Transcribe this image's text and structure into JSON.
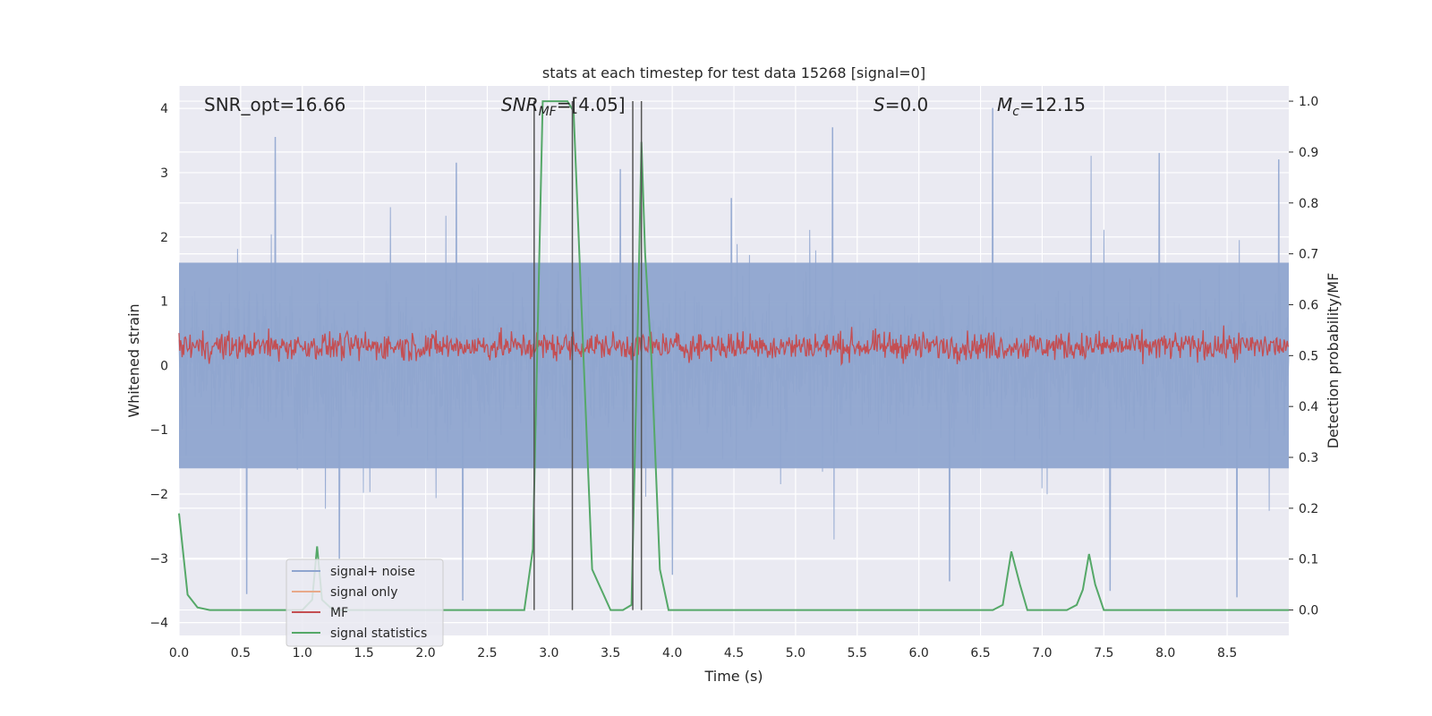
{
  "chart_data": {
    "type": "line",
    "title": "stats at each timestep for test data 15268 [signal=0]",
    "xlabel": "Time (s)",
    "ylabel": "Whitened strain",
    "ylabel_right": "Detection probability/MF",
    "xlim": [
      0.0,
      9.0
    ],
    "ylim": [
      -4.2,
      4.35
    ],
    "ylim_right": [
      -0.05,
      1.03
    ],
    "x_ticks": [
      "0.0",
      "0.5",
      "1.0",
      "1.5",
      "2.0",
      "2.5",
      "3.0",
      "3.5",
      "4.0",
      "4.5",
      "5.0",
      "5.5",
      "6.0",
      "6.5",
      "7.0",
      "7.5",
      "8.0",
      "8.5"
    ],
    "y_ticks": [
      "−4",
      "−3",
      "−2",
      "−1",
      "0",
      "1",
      "2",
      "3",
      "4"
    ],
    "y_ticks_right": [
      "0.0",
      "0.1",
      "0.2",
      "0.3",
      "0.4",
      "0.5",
      "0.6",
      "0.7",
      "0.8",
      "0.9",
      "1.0"
    ],
    "annotations": {
      "snr_opt": "SNR_opt=16.66",
      "snr_mf_base": "SNR",
      "snr_mf_sub": "MF",
      "snr_mf_value": "=[4.05]",
      "s_sym": "S",
      "s_value": "=0.0",
      "mc_base": "M",
      "mc_sub": "c",
      "mc_value": "=12.15"
    },
    "legend": [
      "signal+ noise",
      "signal only",
      "MF",
      "signal statistics"
    ],
    "colors": {
      "signal_noise": "#8fa5cf",
      "signal_only": "#e8a98a",
      "mf": "#c44e52",
      "signal_statistics": "#55a868",
      "vlines": "#555555",
      "background": "#eaeaf2"
    },
    "series": [
      {
        "name": "signal+ noise",
        "description_values": "noise band mostly within ±1.6 whitened strain, spikes up to about ±4",
        "envelope_upper": 1.6,
        "envelope_lower": -1.6,
        "peak_values": [
          [
            0.78,
            3.55
          ],
          [
            2.25,
            3.15
          ],
          [
            3.58,
            3.05
          ],
          [
            4.48,
            2.6
          ],
          [
            5.3,
            3.7
          ],
          [
            6.6,
            4.0
          ],
          [
            7.95,
            3.3
          ],
          [
            8.92,
            3.2
          ],
          [
            0.55,
            -3.55
          ],
          [
            2.3,
            -3.65
          ],
          [
            4.0,
            -3.25
          ],
          [
            6.25,
            -3.35
          ],
          [
            8.58,
            -3.6
          ],
          [
            1.3,
            -3.0
          ],
          [
            7.55,
            -3.5
          ]
        ]
      },
      {
        "name": "MF",
        "description_values": "matched-filter output oscillating between about 0.05 and 0.8",
        "baseline": 0.3,
        "range": [
          0.02,
          0.82
        ]
      },
      {
        "name": "signal statistics",
        "axis": "right",
        "x": [
          0.0,
          0.07,
          0.15,
          0.25,
          0.4,
          1.0,
          1.08,
          1.12,
          1.16,
          1.25,
          1.5,
          2.0,
          2.5,
          2.8,
          2.87,
          2.95,
          3.0,
          3.1,
          3.15,
          3.2,
          3.28,
          3.35,
          3.5,
          3.6,
          3.67,
          3.72,
          3.75,
          3.78,
          3.83,
          3.9,
          3.97,
          4.1,
          5.0,
          6.0,
          6.6,
          6.68,
          6.75,
          6.82,
          6.88,
          6.95,
          7.2,
          7.28,
          7.33,
          7.38,
          7.43,
          7.5,
          7.6,
          8.0,
          9.0
        ],
        "values": [
          0.19,
          0.03,
          0.005,
          0.0,
          0.0,
          0.0,
          0.02,
          0.125,
          0.02,
          0.0,
          0.0,
          0.0,
          0.0,
          0.0,
          0.12,
          1.0,
          1.0,
          1.0,
          1.0,
          0.98,
          0.5,
          0.08,
          0.0,
          0.0,
          0.01,
          0.55,
          0.92,
          0.7,
          0.5,
          0.08,
          0.0,
          0.0,
          0.0,
          0.0,
          0.0,
          0.01,
          0.115,
          0.05,
          0.0,
          0.0,
          0.0,
          0.01,
          0.04,
          0.11,
          0.05,
          0.0,
          0.0,
          0.0,
          0.0
        ]
      }
    ],
    "vertical_lines": [
      2.88,
      3.19,
      3.68,
      3.75
    ]
  }
}
